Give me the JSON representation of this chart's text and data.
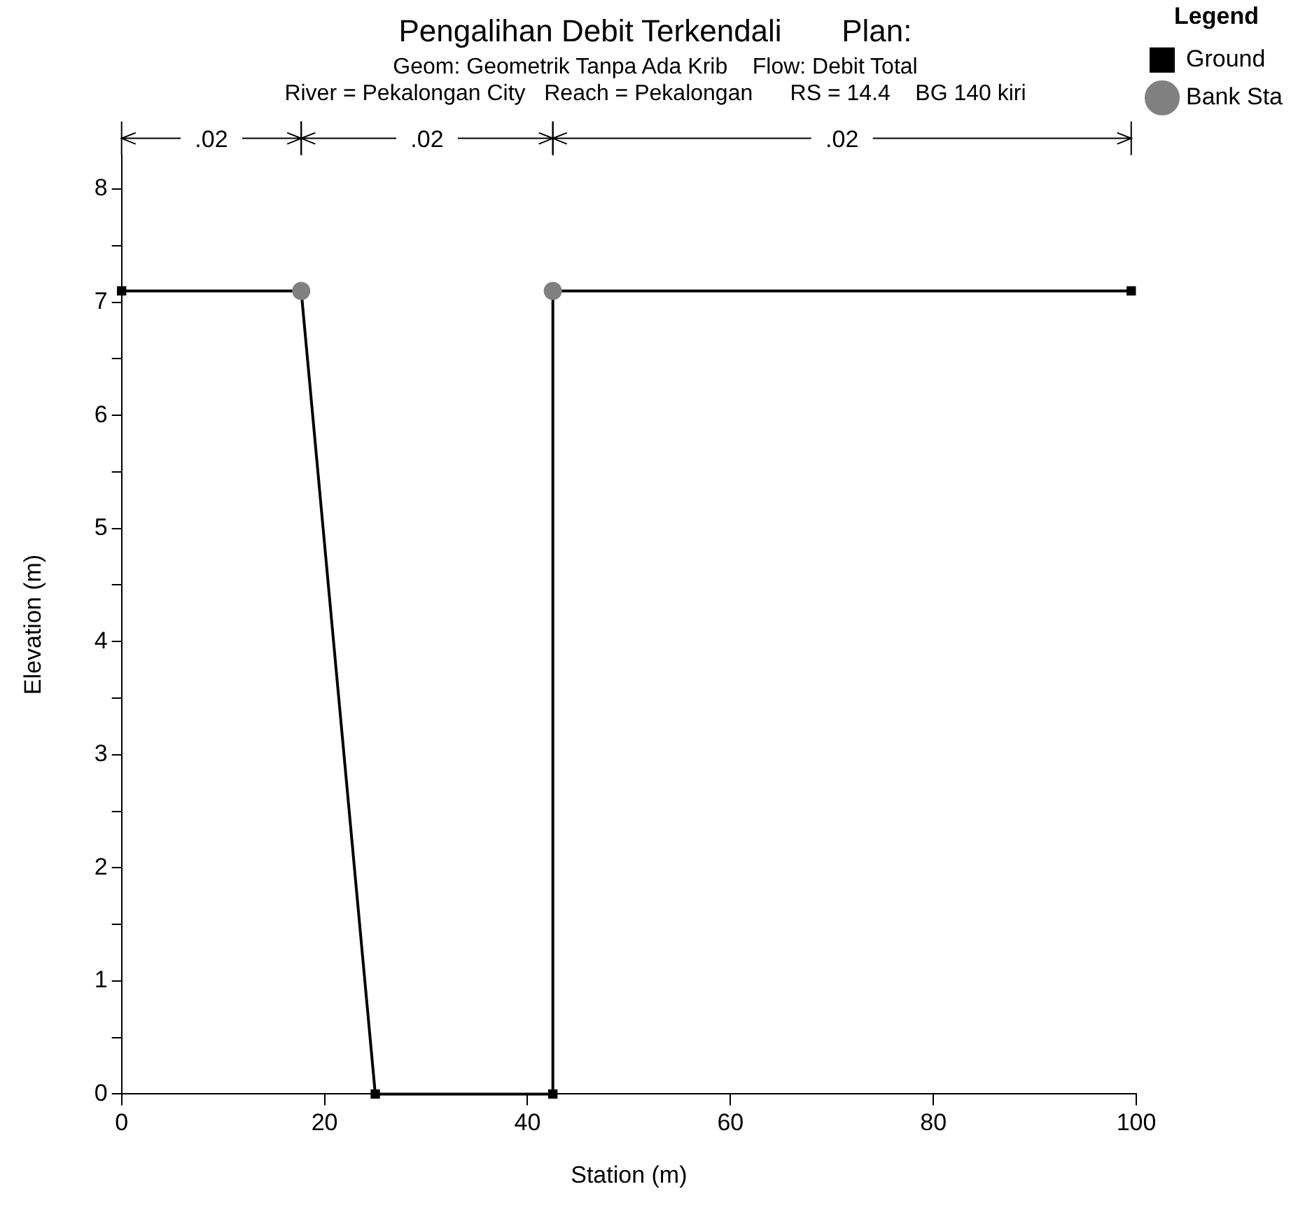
{
  "chart_data": {
    "type": "line",
    "title": "Pengalihan Debit Terkendali       Plan:",
    "subtitle": "Geom: Geometrik Tanpa Ada Krib    Flow: Debit Total",
    "xlabel": "Station (m)",
    "ylabel": "Elevation (m)",
    "legend_title": "Legend",
    "legend": "top right",
    "grid": false,
    "marker": "square",
    "annotations": [
      "River = Pekalongan City   Reach = Pekalongan      RS = 14.4    BG 140 kiri",
      ".02",
      ".02",
      ".02"
    ],
    "xlim": [
      0,
      100
    ],
    "xticks": [
      0,
      20,
      40,
      60,
      80,
      100
    ],
    "ylim": [
      0,
      8.3
    ],
    "yticks": [
      0,
      {
        "value": 0.5,
        "label": null
      },
      1,
      {
        "value": 1.5,
        "label": null
      },
      2,
      {
        "value": 2.5,
        "label": null
      },
      3,
      {
        "value": 3.5,
        "label": null
      },
      4,
      {
        "value": 4.5,
        "label": null
      },
      5,
      {
        "value": 5.5,
        "label": null
      },
      6,
      {
        "value": 6.5,
        "label": null
      },
      7,
      {
        "value": 7.5,
        "label": null
      },
      8
    ],
    "series": [
      {
        "name": "Ground",
        "color": "#000000",
        "x": [
          0,
          17.7,
          25,
          42.5,
          42.5,
          99.5
        ],
        "values": [
          7.1,
          7.1,
          0,
          0,
          7.1,
          7.1
        ]
      },
      {
        "name": "Bank Sta",
        "type": "scatter",
        "color": "#808080",
        "marker": "circle",
        "x": [
          17.7,
          42.5
        ],
        "values": [
          7.1,
          7.1
        ]
      }
    ]
  }
}
